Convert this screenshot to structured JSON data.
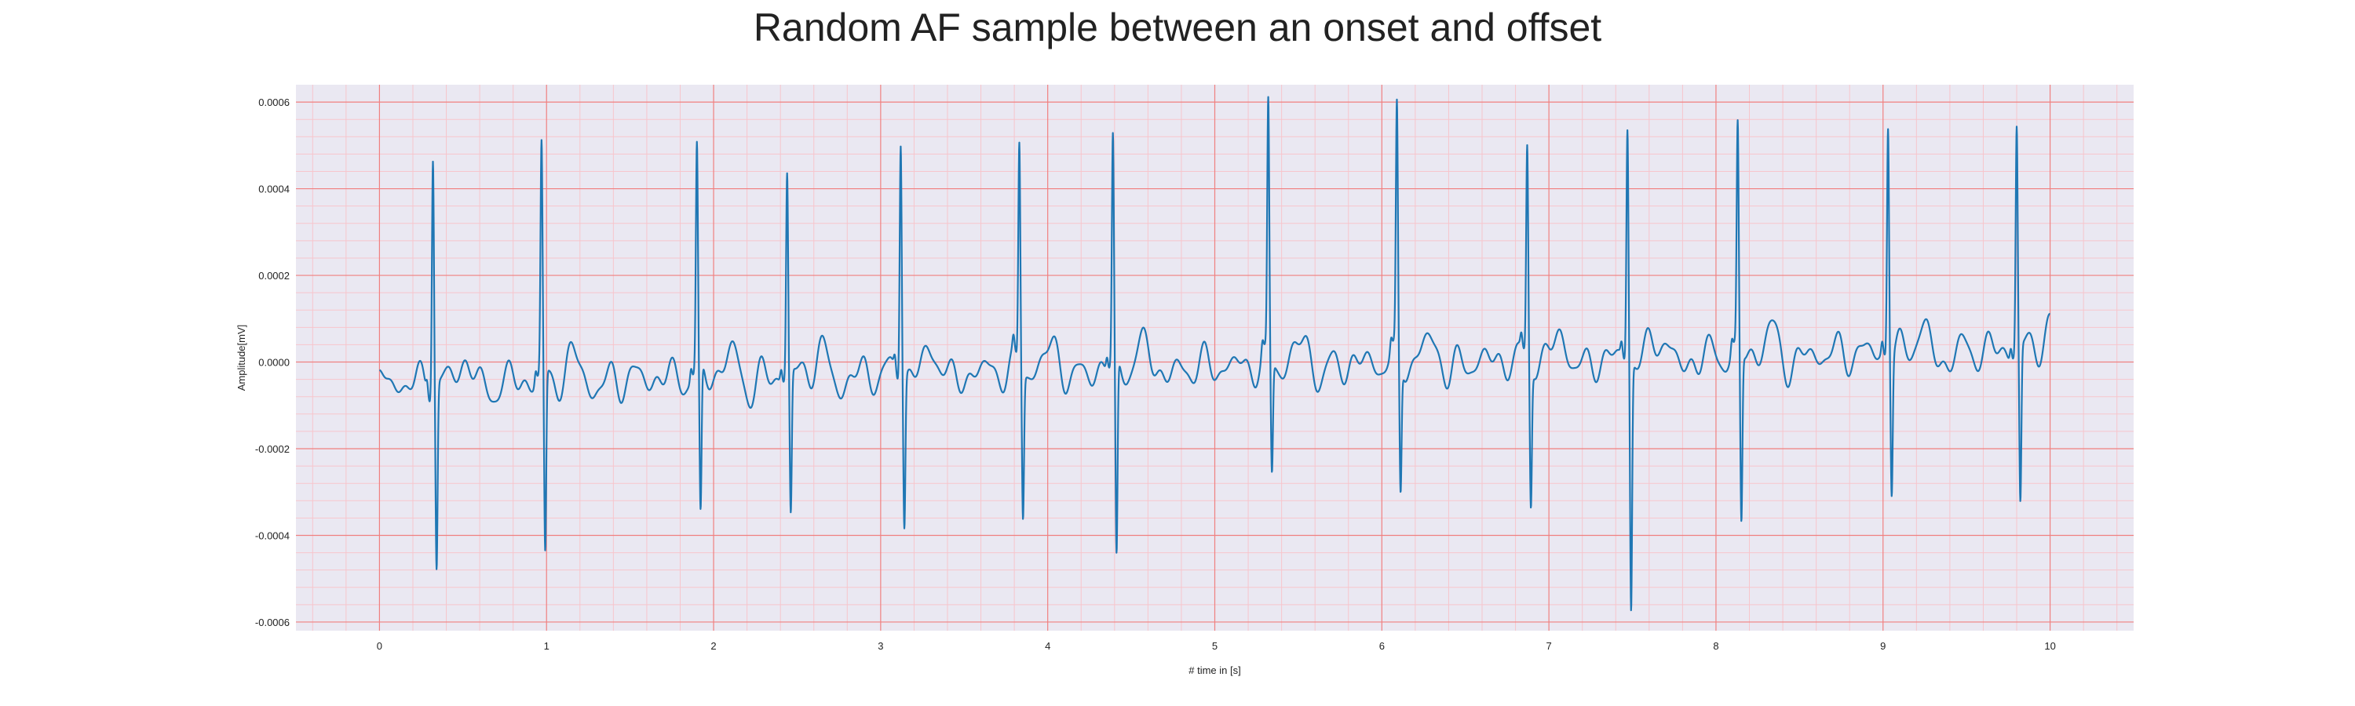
{
  "chart_data": {
    "type": "line",
    "title": "Random AF sample between an onset and offset",
    "xlabel": "# time in [s]",
    "ylabel": "Amplitude[mV]",
    "xlim": [
      -0.5,
      10.5
    ],
    "ylim": [
      -0.00062,
      0.00064
    ],
    "xticks": [
      0,
      1,
      2,
      3,
      4,
      5,
      6,
      7,
      8,
      9,
      10
    ],
    "xtick_labels": [
      "0",
      "1",
      "2",
      "3",
      "4",
      "5",
      "6",
      "7",
      "8",
      "9",
      "10"
    ],
    "yticks": [
      -0.0006,
      -0.0004,
      -0.0002,
      0.0,
      0.0002,
      0.0004,
      0.0006
    ],
    "ytick_labels": [
      "-0.0006",
      "-0.0004",
      "-0.0002",
      "0.0000",
      "0.0002",
      "0.0004",
      "0.0006"
    ],
    "grid": true,
    "minor_grid": true,
    "legend": "none",
    "colors": {
      "plot_background": "#eae8f2",
      "major_grid": "#f08080",
      "minor_grid": "#f7c5cc",
      "line": "#1f77b4"
    },
    "series": [
      {
        "line_color": "#1f77b4",
        "x_start": 0.0,
        "x_end": 10.0,
        "baseline_start": -5e-05,
        "baseline_end": 3e-05,
        "r_peaks": [
          {
            "t": 0.32,
            "r": 0.00055,
            "s": -0.00042
          },
          {
            "t": 0.97,
            "r": 0.00053,
            "s": -0.00042
          },
          {
            "t": 1.9,
            "r": 0.00051,
            "s": -0.00035
          },
          {
            "t": 2.44,
            "r": 0.00047,
            "s": -0.00033
          },
          {
            "t": 3.12,
            "r": 0.00056,
            "s": -0.00034
          },
          {
            "t": 3.83,
            "r": 0.00052,
            "s": -0.00033
          },
          {
            "t": 4.39,
            "r": 0.00052,
            "s": -0.00046
          },
          {
            "t": 5.32,
            "r": 0.00058,
            "s": -0.00026
          },
          {
            "t": 6.09,
            "r": 0.00056,
            "s": -0.0003
          },
          {
            "t": 6.87,
            "r": 0.00049,
            "s": -0.00032
          },
          {
            "t": 7.47,
            "r": 0.00054,
            "s": -0.00057
          },
          {
            "t": 8.13,
            "r": 0.00051,
            "s": -0.00039
          },
          {
            "t": 9.03,
            "r": 0.00054,
            "s": -0.00031
          },
          {
            "t": 9.8,
            "r": 0.00052,
            "s": -0.00036
          }
        ]
      }
    ]
  }
}
